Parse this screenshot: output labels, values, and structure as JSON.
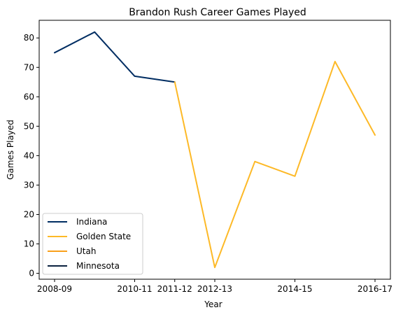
{
  "chart_data": {
    "type": "line",
    "title": "Brandon Rush Career Games Played",
    "xlabel": "Year",
    "ylabel": "Games Played",
    "ylim": [
      -2,
      86
    ],
    "yticks": [
      0,
      10,
      20,
      30,
      40,
      50,
      60,
      70,
      80
    ],
    "x_categories": [
      "2008-09",
      "2009-10",
      "2010-11",
      "2011-12",
      "2012-13",
      "2013-14",
      "2014-15",
      "2015-16",
      "2016-17"
    ],
    "xtick_labels": [
      "2008-09",
      "2010-11",
      "2011-12",
      "2012-13",
      "2014-15",
      "2016-17"
    ],
    "grid": false,
    "legend_position": "lower-left",
    "series": [
      {
        "name": "Indiana",
        "color": "#002D62",
        "x": [
          "2008-09",
          "2009-10",
          "2010-11",
          "2011-12"
        ],
        "values": [
          75,
          82,
          67,
          65
        ]
      },
      {
        "name": "Golden State",
        "color": "#FDB927",
        "x": [
          "2011-12",
          "2012-13",
          "2013-14",
          "2014-15",
          "2015-16",
          "2016-17"
        ],
        "values": [
          65,
          2,
          38,
          33,
          72,
          47
        ]
      },
      {
        "name": "Utah",
        "color": "#F9A01B",
        "x": [],
        "values": []
      },
      {
        "name": "Minnesota",
        "color": "#0C2340",
        "x": [],
        "values": []
      }
    ]
  }
}
